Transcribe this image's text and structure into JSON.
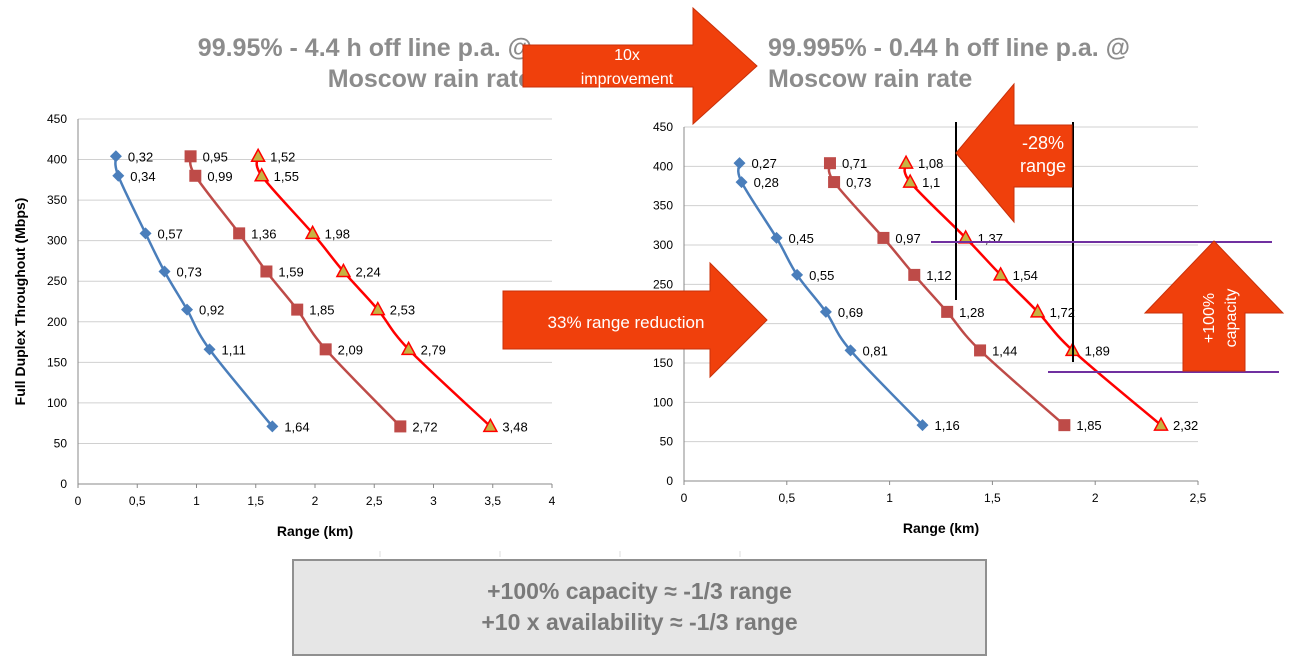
{
  "headers": {
    "left_line1": "99.95% - 4.4 h off line p.a. @",
    "left_line2": "Moscow rain rate",
    "right_line1": "99.995% - 0.44 h off line p.a. @",
    "right_line2": "Moscow rain rate"
  },
  "callouts": {
    "improvement_line1": "10x",
    "improvement_line2": "improvement",
    "range_pct": "-28%",
    "range_word": "range",
    "range_reduction": "33% range reduction",
    "capacity_line1": "+100%",
    "capacity_line2": "capacity"
  },
  "summary": {
    "line1": "+100% capacity ≈ -1/3 range",
    "line2": "+10 x availability ≈ -1/3 range"
  },
  "colors": {
    "blue": "#4a7ebb",
    "brown": "#be4b48",
    "red_line": "#ff0000",
    "triangle_fill": "#c7b342",
    "orange": "#f0400c",
    "purple": "#7030a0"
  },
  "chart_data": [
    {
      "type": "line",
      "ylabel": "Full Duplex Throughout (Mbps)",
      "xlabel": "Range (km)",
      "xlim": [
        0,
        4
      ],
      "ylim": [
        0,
        450
      ],
      "xticks": [
        "0",
        "0,5",
        "1",
        "1,5",
        "2",
        "2,5",
        "3",
        "3,5",
        "4"
      ],
      "yticks": [
        "0",
        "50",
        "100",
        "150",
        "200",
        "250",
        "300",
        "350",
        "400",
        "450"
      ],
      "grid": true,
      "series": [
        {
          "marker": "diamond",
          "color": "#4a7ebb",
          "x": [
            0.32,
            0.34,
            0.57,
            0.73,
            0.92,
            1.11,
            1.64
          ],
          "y": [
            404,
            380,
            309,
            262,
            215,
            166,
            71
          ],
          "labels": [
            "0,32",
            "0,34",
            "0,57",
            "0,73",
            "0,92",
            "1,11",
            "1,64"
          ]
        },
        {
          "marker": "square",
          "color": "#be4b48",
          "x": [
            0.95,
            0.99,
            1.36,
            1.59,
            1.85,
            2.09,
            2.72
          ],
          "y": [
            404,
            380,
            309,
            262,
            215,
            166,
            71
          ],
          "labels": [
            "0,95",
            "0,99",
            "1,36",
            "1,59",
            "1,85",
            "2,09",
            "2,72"
          ]
        },
        {
          "marker": "triangle",
          "color": "#ff0000",
          "x": [
            1.52,
            1.55,
            1.98,
            2.24,
            2.53,
            2.79,
            3.48
          ],
          "y": [
            404,
            380,
            309,
            262,
            215,
            166,
            71
          ],
          "labels": [
            "1,52",
            "1,55",
            "1,98",
            "2,24",
            "2,53",
            "2,79",
            "3,48"
          ]
        }
      ]
    },
    {
      "type": "line",
      "ylabel": "",
      "xlabel": "Range (km)",
      "xlim": [
        0,
        2.5
      ],
      "ylim": [
        0,
        450
      ],
      "xticks": [
        "0",
        "0,5",
        "1",
        "1,5",
        "2",
        "2,5"
      ],
      "yticks": [
        "0",
        "50",
        "100",
        "150",
        "200",
        "250",
        "300",
        "350",
        "400",
        "450"
      ],
      "grid": true,
      "series": [
        {
          "marker": "diamond",
          "color": "#4a7ebb",
          "x": [
            0.27,
            0.28,
            0.45,
            0.55,
            0.69,
            0.81,
            1.16
          ],
          "y": [
            404,
            380,
            309,
            262,
            215,
            166,
            71
          ],
          "labels": [
            "0,27",
            "0,28",
            "0,45",
            "0,55",
            "0,69",
            "0,81",
            "1,16"
          ]
        },
        {
          "marker": "square",
          "color": "#be4b48",
          "x": [
            0.71,
            0.73,
            0.97,
            1.12,
            1.28,
            1.44,
            1.85
          ],
          "y": [
            404,
            380,
            309,
            262,
            215,
            166,
            71
          ],
          "labels": [
            "0,71",
            "0,73",
            "0,97",
            "1,12",
            "1,28",
            "1,44",
            "1,85"
          ]
        },
        {
          "marker": "triangle",
          "color": "#ff0000",
          "x": [
            1.08,
            1.1,
            1.37,
            1.54,
            1.72,
            1.89,
            2.32
          ],
          "y": [
            404,
            380,
            309,
            262,
            215,
            166,
            71
          ],
          "labels": [
            "1,08",
            "1,1",
            "1,37",
            "1,54",
            "1,72",
            "1,89",
            "2,32"
          ]
        }
      ]
    }
  ]
}
